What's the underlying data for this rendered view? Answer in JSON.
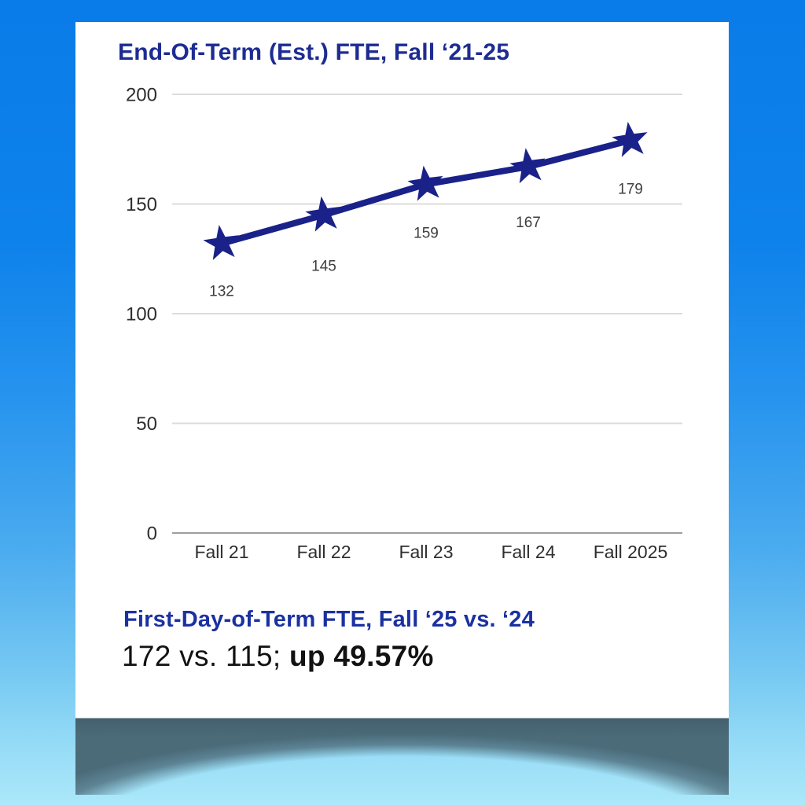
{
  "page": {
    "background_top": "#0a7ce9",
    "background_bottom": "#abe8fa",
    "card_background": "#ffffff",
    "shadow_color": "#4f707f"
  },
  "card": {
    "title": "End-Of-Term (Est.) FTE, Fall ‘21-25",
    "title_color": "#1d2c92",
    "subtitle": "First-Day-of-Term FTE, Fall ‘25 vs. ‘24",
    "subtitle_color": "#1b31a1",
    "stats_regular": "172 vs. 115; ",
    "stats_bold": "up 49.57%"
  },
  "chart_data": {
    "type": "line",
    "title": "End-Of-Term (Est.) FTE, Fall ‘21-25",
    "categories": [
      "Fall 21",
      "Fall 22",
      "Fall 23",
      "Fall 24",
      "Fall 2025"
    ],
    "values": [
      132,
      145,
      159,
      167,
      179
    ],
    "data_labels": [
      "132",
      "145",
      "159",
      "167",
      "179"
    ],
    "xlabel": "",
    "ylabel": "",
    "ylim": [
      0,
      200
    ],
    "yticks": [
      0,
      50,
      100,
      150,
      200
    ],
    "grid": true,
    "legend": "none",
    "marker": "star",
    "line_color": "#1a2189",
    "gridline_color": "#dcdcdc",
    "axis_line_color": "#9e9e9e",
    "tick_label_color": "#2e2e2e",
    "data_label_color": "#3e3e3e"
  }
}
